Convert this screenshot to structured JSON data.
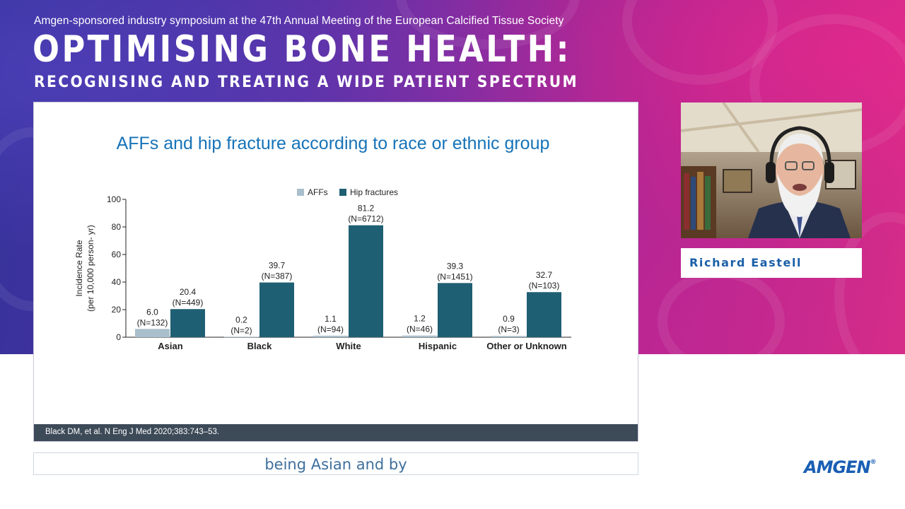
{
  "header": {
    "symposium_line": "Amgen-sponsored industry symposium at the 47th Annual Meeting of the European Calcified Tissue Society",
    "title": "OPTIMISING BONE HEALTH:",
    "subtitle": "RECOGNISING AND TREATING A WIDE PATIENT SPECTRUM"
  },
  "slide": {
    "title": "AFFs and hip fracture according to race or ethnic group",
    "footer_citation": "Black DM, et al. N Eng J Med 2020;383:743–53."
  },
  "speaker": {
    "name": "Richard Eastell",
    "video_icon": "presenter-video"
  },
  "caption": {
    "text": "being Asian and by"
  },
  "brand": {
    "logo_text": "AMGEN",
    "registered_mark": "®",
    "logo_color": "#1a5fb4"
  },
  "chart_data": {
    "type": "bar",
    "title": "",
    "categories": [
      "Asian",
      "Black",
      "White",
      "Hispanic",
      "Other or Unknown"
    ],
    "series": [
      {
        "name": "AFFs",
        "color": "#a9bfcc",
        "values": [
          6.0,
          0.2,
          1.1,
          1.2,
          0.9
        ],
        "value_labels": [
          "6.0",
          "0.2",
          "1.1",
          "1.2",
          "0.9"
        ],
        "n_labels": [
          "(N=132)",
          "(N=2)",
          "(N=94)",
          "(N=46)",
          "(N=3)"
        ]
      },
      {
        "name": "Hip fractures",
        "color": "#1f5f73",
        "values": [
          20.4,
          39.7,
          81.2,
          39.3,
          32.7
        ],
        "value_labels": [
          "20.4",
          "39.7",
          "81.2",
          "39.3",
          "32.7"
        ],
        "n_labels": [
          "(N=449)",
          "(N=387)",
          "(N=6712)",
          "(N=1451)",
          "(N=103)"
        ]
      }
    ],
    "ylabel_line1": "Incidence Rate",
    "ylabel_line2": "(per 10,000 person- yr)",
    "xlabel": "",
    "ylim": [
      0,
      100
    ],
    "yticks": [
      0,
      20,
      40,
      60,
      80,
      100
    ],
    "grid": false,
    "legend": "top-center"
  }
}
